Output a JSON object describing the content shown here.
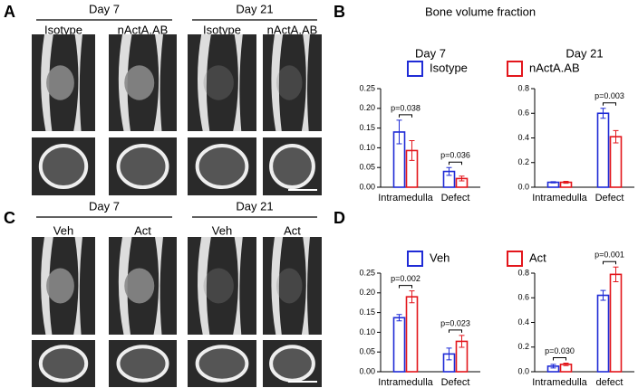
{
  "image_panels": [
    {
      "letter": "A",
      "groups": [
        {
          "title": "Day 7",
          "labels": [
            "Isotype",
            "nActA.AB"
          ]
        },
        {
          "title": "Day 21",
          "labels": [
            "Isotype",
            "nActA.AB"
          ]
        }
      ]
    },
    {
      "letter": "C",
      "groups": [
        {
          "title": "Day 7",
          "labels": [
            "Veh",
            "Act"
          ]
        },
        {
          "title": "Day 21",
          "labels": [
            "Veh",
            "Act"
          ]
        }
      ]
    }
  ],
  "chart_panels": [
    {
      "letter": "B",
      "title": "Bone volume fraction"
    },
    {
      "letter": "D"
    }
  ],
  "chart_data": [
    {
      "type": "bar",
      "subtitle": "Day 7",
      "categories": [
        "Intramedulla",
        "Defect"
      ],
      "series": [
        {
          "name": "Isotype",
          "color": "#1f2bd6",
          "values": [
            0.14,
            0.04
          ],
          "errors": [
            0.03,
            0.01
          ]
        },
        {
          "name": "nActA.AB",
          "color": "#e3161c",
          "values": [
            0.093,
            0.022
          ],
          "errors": [
            0.025,
            0.006
          ]
        }
      ],
      "p_labels": [
        "p=0.038",
        "p=0.036"
      ],
      "ylim": [
        0,
        0.25
      ],
      "yticks": [
        {
          "value": 0,
          "label": "0.00"
        },
        {
          "value": 0.05,
          "label": "0.05"
        },
        {
          "value": 0.1,
          "label": "0.10"
        },
        {
          "value": 0.15,
          "label": "0.15"
        },
        {
          "value": 0.2,
          "label": "0.20"
        },
        {
          "value": 0.25,
          "label": "0.25"
        }
      ]
    },
    {
      "type": "bar",
      "subtitle": "Day 21",
      "categories": [
        "Intramedulla",
        "Defect"
      ],
      "series": [
        {
          "color": "#1f2bd6",
          "values": [
            0.04,
            0.6
          ],
          "errors": [
            0.005,
            0.04
          ]
        },
        {
          "color": "#e3161c",
          "values": [
            0.04,
            0.41
          ],
          "errors": [
            0.008,
            0.05
          ]
        }
      ],
      "p_labels": [
        null,
        "p=0.003"
      ],
      "ylim": [
        0,
        0.8
      ],
      "yticks": [
        {
          "value": 0,
          "label": "0.0"
        },
        {
          "value": 0.2,
          "label": "0.2"
        },
        {
          "value": 0.4,
          "label": "0.4"
        },
        {
          "value": 0.6,
          "label": "0.6"
        },
        {
          "value": 0.8,
          "label": "0.8"
        }
      ]
    },
    {
      "type": "bar",
      "categories": [
        "Intramedulla",
        "Defect"
      ],
      "series": [
        {
          "name": "Veh",
          "color": "#1f2bd6",
          "values": [
            0.137,
            0.045
          ],
          "errors": [
            0.008,
            0.015
          ]
        },
        {
          "name": "Act",
          "color": "#e3161c",
          "values": [
            0.19,
            0.077
          ],
          "errors": [
            0.015,
            0.015
          ]
        }
      ],
      "p_labels": [
        "p=0.002",
        "p=0.023"
      ],
      "ylim": [
        0,
        0.25
      ],
      "yticks": [
        {
          "value": 0,
          "label": "0.00"
        },
        {
          "value": 0.05,
          "label": "0.05"
        },
        {
          "value": 0.1,
          "label": "0.10"
        },
        {
          "value": 0.15,
          "label": "0.15"
        },
        {
          "value": 0.2,
          "label": "0.20"
        },
        {
          "value": 0.25,
          "label": "0.25"
        }
      ]
    },
    {
      "type": "bar",
      "categories": [
        "Intramedulla",
        "defect"
      ],
      "series": [
        {
          "color": "#1f2bd6",
          "values": [
            0.045,
            0.62
          ],
          "errors": [
            0.015,
            0.04
          ]
        },
        {
          "color": "#e3161c",
          "values": [
            0.06,
            0.79
          ],
          "errors": [
            0.01,
            0.06
          ]
        }
      ],
      "p_labels": [
        "p=0.030",
        "p=0.001"
      ],
      "ylim": [
        0,
        0.8
      ],
      "yticks": [
        {
          "value": 0,
          "label": "0.0"
        },
        {
          "value": 0.2,
          "label": "0.2"
        },
        {
          "value": 0.4,
          "label": "0.4"
        },
        {
          "value": 0.6,
          "label": "0.6"
        },
        {
          "value": 0.8,
          "label": "0.8"
        }
      ]
    }
  ]
}
